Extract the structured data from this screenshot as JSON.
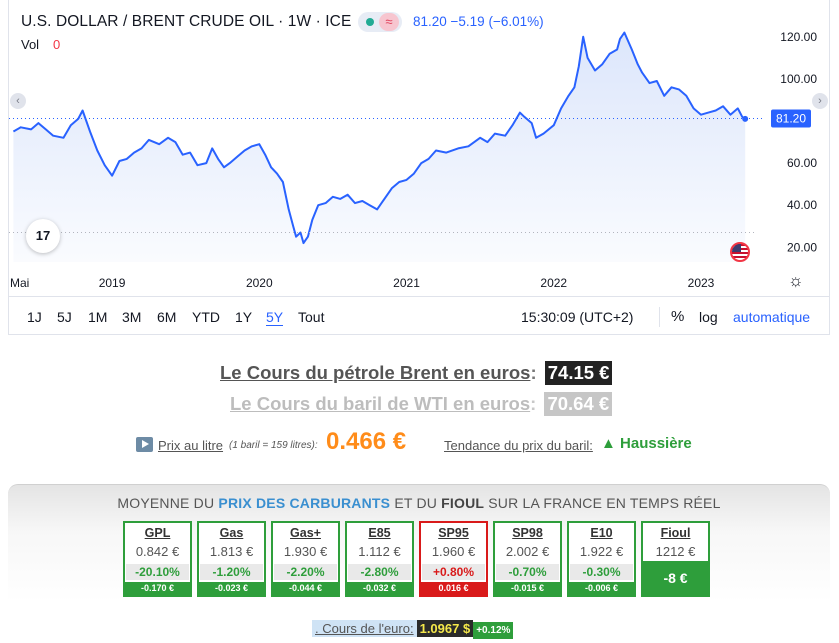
{
  "widget": {
    "title": "U.S. DOLLAR / BRENT CRUDE OIL · 1W · ICE",
    "status_approx": "≈",
    "quote": "81.20  −5.19 (−6.01%)",
    "vol_label": "Vol",
    "vol_value": "0",
    "logo_text": "17",
    "toolbar": {
      "ranges": [
        "1J",
        "5J",
        "1M",
        "3M",
        "6M",
        "YTD",
        "1Y",
        "5Y",
        "Tout"
      ],
      "active_range": "5Y",
      "time": "15:30:09 (UTC+2)",
      "percent": "%",
      "log": "log",
      "auto": "automatique"
    },
    "colors": {
      "line": "#2962ff",
      "area": "#dce6fb",
      "last_price": "#2962ff"
    }
  },
  "chart_data": {
    "type": "area",
    "title": "U.S. DOLLAR / BRENT CRUDE OIL · 1W · ICE",
    "x_ticks": [
      "Mai",
      "2019",
      "2020",
      "2021",
      "2022",
      "2023"
    ],
    "y_ticks": [
      "120.00",
      "100.00",
      "60.00",
      "40.00",
      "20.00"
    ],
    "ylim": [
      13,
      128
    ],
    "last_value_label": "81.20",
    "last_value": 81.2,
    "grid": false,
    "series": [
      {
        "x": [
          2018.33,
          2018.38,
          2018.45,
          2018.5,
          2018.55,
          2018.6,
          2018.67,
          2018.72,
          2018.77,
          2018.8,
          2018.85,
          2018.9,
          2018.95,
          2019.0,
          2019.05,
          2019.1,
          2019.15,
          2019.2,
          2019.25,
          2019.32,
          2019.38,
          2019.43,
          2019.48,
          2019.53,
          2019.58,
          2019.64,
          2019.68,
          2019.72,
          2019.76,
          2019.8,
          2019.85,
          2019.9,
          2019.95,
          2020.0,
          2020.04,
          2020.08,
          2020.12,
          2020.16,
          2020.2,
          2020.23,
          2020.25,
          2020.28,
          2020.3,
          2020.33,
          2020.36,
          2020.4,
          2020.45,
          2020.5,
          2020.55,
          2020.6,
          2020.65,
          2020.7,
          2020.75,
          2020.8,
          2020.85,
          2020.9,
          2020.95,
          2021.0,
          2021.05,
          2021.1,
          2021.15,
          2021.2,
          2021.27,
          2021.35,
          2021.42,
          2021.5,
          2021.55,
          2021.6,
          2021.67,
          2021.72,
          2021.77,
          2021.8,
          2021.85,
          2021.88,
          2021.93,
          2022.0,
          2022.05,
          2022.1,
          2022.14,
          2022.17,
          2022.2,
          2022.23,
          2022.28,
          2022.33,
          2022.38,
          2022.43,
          2022.45,
          2022.48,
          2022.53,
          2022.57,
          2022.6,
          2022.65,
          2022.7,
          2022.75,
          2022.8,
          2022.85,
          2022.9,
          2022.95,
          2023.0,
          2023.05,
          2023.1,
          2023.15,
          2023.2,
          2023.25,
          2023.28,
          2023.3
        ],
        "values": [
          75,
          77,
          76,
          79,
          76,
          73,
          72,
          78,
          81,
          85,
          75,
          66,
          59,
          54,
          61,
          62,
          65,
          67,
          71,
          69,
          72,
          70,
          64,
          65,
          59,
          60,
          67,
          62,
          58,
          60,
          63,
          66,
          68,
          69,
          64,
          58,
          55,
          51,
          38,
          30,
          25,
          27,
          22,
          25,
          33,
          40,
          41,
          44,
          43,
          45,
          41,
          42,
          40,
          38,
          43,
          48,
          51,
          52,
          55,
          60,
          62,
          66,
          65,
          67,
          68,
          72,
          70,
          74,
          73,
          78,
          84,
          82,
          79,
          72,
          74,
          78,
          86,
          92,
          96,
          106,
          120,
          110,
          104,
          107,
          112,
          114,
          119,
          122,
          114,
          107,
          103,
          98,
          99,
          92,
          96,
          95,
          92,
          86,
          83,
          84,
          85,
          87,
          83,
          86,
          82,
          81
        ]
      }
    ]
  },
  "prices": {
    "brent_label": "Le Cours du pétrole Brent en euros",
    "brent_value": "74.15 €",
    "wti_label": "Le Cours du baril de WTI en euros",
    "wti_value": "70.64 €",
    "colon": ":",
    "litre_label": "Prix au litre",
    "litre_note": "(1 baril = 159 litres):",
    "litre_value": "0.466 €",
    "trend_label": "Tendance du prix du baril:",
    "trend_value": "▲ Haussière"
  },
  "fuel": {
    "heading_pre": "MOYENNE DU ",
    "heading_hl": "PRIX DES CARBURANTS",
    "heading_mid": " ET DU ",
    "heading_dk": "FIOUL",
    "heading_post": " SUR LA FRANCE EN TEMPS RÉEL",
    "cards": [
      {
        "name": "GPL",
        "price": "0.842 €",
        "pct": "-20.10%",
        "diff": "-0.170 €"
      },
      {
        "name": "Gas",
        "price": "1.813 €",
        "pct": "-1.20%",
        "diff": "-0.023 €"
      },
      {
        "name": "Gas+",
        "price": "1.930 €",
        "pct": "-2.20%",
        "diff": "-0.044 €"
      },
      {
        "name": "E85",
        "price": "1.112 €",
        "pct": "-2.80%",
        "diff": "-0.032 €"
      },
      {
        "name": "SP95",
        "price": "1.960 €",
        "pct": "+0.80%",
        "diff": "0.016 €"
      },
      {
        "name": "SP98",
        "price": "2.002 €",
        "pct": "-0.70%",
        "diff": "-0.015 €"
      },
      {
        "name": "E10",
        "price": "1.922 €",
        "pct": "-0.30%",
        "diff": "-0.006 €"
      },
      {
        "name": "Fioul",
        "price": "1212 €",
        "big": "-8 €"
      }
    ]
  },
  "euro": {
    "label": ". Cours de l'euro:",
    "rate": "1.0967 $",
    "change": "+0.12%"
  }
}
